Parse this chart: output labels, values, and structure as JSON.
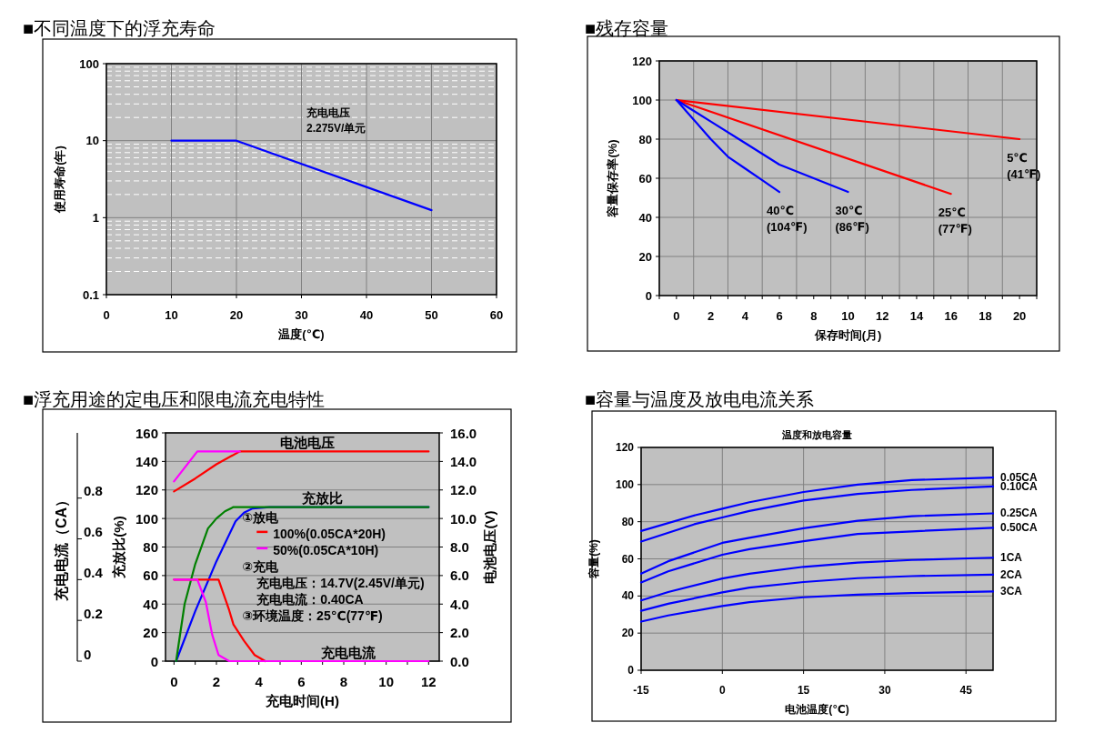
{
  "chart_data": [
    {
      "type": "line",
      "title": "■不同温度下的浮充寿命",
      "xlabel": "温度(℃)",
      "ylabel": "使用寿命(年)",
      "log": "y",
      "xlim": [
        0,
        60
      ],
      "xticks": [
        0,
        10,
        20,
        30,
        40,
        50,
        60
      ],
      "ylim": [
        0.1,
        100
      ],
      "yticks": [
        0.1,
        1,
        10,
        100
      ],
      "grid": true,
      "annotations": [
        "充电电压",
        "2.275V/单元"
      ],
      "series": [
        {
          "color": "#0000ff",
          "x": [
            10,
            20,
            50
          ],
          "values": [
            10,
            10,
            1.25
          ]
        }
      ]
    },
    {
      "type": "line",
      "title": "■残存容量",
      "xlabel": "保存时间(月)",
      "ylabel": "容量保存率(%)",
      "xlim": [
        -1,
        21
      ],
      "xticks": [
        {
          "value": -1,
          "label": null
        },
        0,
        {
          "value": 1,
          "label": null
        },
        2,
        {
          "value": 3,
          "label": null
        },
        4,
        {
          "value": 5,
          "label": null
        },
        6,
        {
          "value": 7,
          "label": null
        },
        8,
        {
          "value": 9,
          "label": null
        },
        10,
        {
          "value": 11,
          "label": null
        },
        12,
        {
          "value": 13,
          "label": null
        },
        14,
        {
          "value": 15,
          "label": null
        },
        16,
        {
          "value": 17,
          "label": null
        },
        18,
        {
          "value": 19,
          "label": null
        },
        20,
        {
          "value": 21,
          "label": null
        }
      ],
      "ylim": [
        0,
        120
      ],
      "yticks": [
        0,
        20,
        40,
        60,
        80,
        100,
        120
      ],
      "grid": true,
      "series": [
        {
          "name": "5℃ (41℉)",
          "color": "#ff0000",
          "x": [
            0,
            20
          ],
          "values": [
            100,
            80
          ]
        },
        {
          "name": "25℃ (77℉)",
          "color": "#ff0000",
          "x": [
            0,
            16
          ],
          "values": [
            100,
            52
          ]
        },
        {
          "name": "30℃ (86℉)",
          "color": "#0000ff",
          "x": [
            0,
            2,
            4,
            6,
            8,
            10
          ],
          "values": [
            100,
            89,
            78,
            67,
            60,
            53
          ]
        },
        {
          "name": "40℃ (104℉)",
          "color": "#0000ff",
          "x": [
            0,
            1,
            2,
            3,
            4,
            5,
            6
          ],
          "values": [
            100,
            90,
            80,
            71,
            65,
            59,
            53
          ]
        }
      ]
    },
    {
      "type": "line",
      "title": "■浮充用途的定电压和限电流充电特性",
      "xlabel": "充电时间(H)",
      "ylabel": "充放比(%)",
      "y2label": "电池电压(V)",
      "y3label": "充电电流（CA）",
      "xlim": [
        -0.4,
        12.5
      ],
      "xticks": [
        0,
        {
          "value": 1,
          "label": null
        },
        2,
        {
          "value": 3,
          "label": null
        },
        4,
        {
          "value": 5,
          "label": null
        },
        6,
        {
          "value": 7,
          "label": null
        },
        8,
        {
          "value": 9,
          "label": null
        },
        10,
        {
          "value": 11,
          "label": null
        },
        12
      ],
      "ylim": [
        0,
        160
      ],
      "yticks": [
        0,
        20,
        40,
        60,
        80,
        100,
        120,
        140,
        160
      ],
      "y2lim": [
        0,
        16
      ],
      "y2ticks": [
        {
          "value": 0,
          "label": "0.0"
        },
        {
          "value": 2,
          "label": "2.0"
        },
        {
          "value": 4,
          "label": "4.0"
        },
        {
          "value": 6,
          "label": "6.0"
        },
        {
          "value": 8,
          "label": "8.0"
        },
        {
          "value": 10,
          "label": "10.0"
        },
        {
          "value": 12,
          "label": "12.0"
        },
        {
          "value": 14,
          "label": "14.0"
        },
        {
          "value": 16,
          "label": "16.0"
        }
      ],
      "y3lim": [
        0,
        1.12
      ],
      "y3ticks": [
        0,
        0.2,
        0.4,
        0.6,
        0.8
      ],
      "grid": "y",
      "legend": "center",
      "legend_title": "①放电",
      "annotations": [
        "②充电",
        "充电电压：14.7V(2.45V/单元)",
        "充电电流：0.40CA",
        "③环境温度：25℃(77℉)",
        {
          "text": "电池电压",
          "x": 6.3,
          "y": 147
        },
        {
          "text": "充放比",
          "x": 7,
          "y": 108
        },
        {
          "text": "充电电流",
          "x": 8.2,
          "y": 0
        }
      ],
      "series": [
        {
          "name": "100%(0.05CA*20H)",
          "color": "#ff0000",
          "axis": "y2",
          "x": [
            0,
            1,
            2,
            3.1,
            12
          ],
          "values": [
            11.9,
            12.8,
            13.8,
            14.7,
            14.7
          ]
        },
        {
          "name": "50%(0.05CA*10H)",
          "color": "#ff00ff",
          "axis": "y2",
          "x": [
            0,
            1.1,
            3.1
          ],
          "values": [
            12.6,
            14.7,
            14.7
          ]
        },
        {
          "color": "#0000ff",
          "x": [
            0.1,
            1,
            2,
            2.9,
            3.3,
            3.7,
            4.5,
            12
          ],
          "values": [
            0,
            35,
            70,
            98,
            104,
            107,
            108,
            108
          ]
        },
        {
          "color": "#008000",
          "x": [
            0.1,
            0.5,
            1,
            1.6,
            2,
            2.4,
            2.8,
            12
          ],
          "values": [
            0,
            40,
            68,
            93,
            100,
            105,
            108,
            108
          ]
        },
        {
          "color": "#ff0000",
          "axis": "y3",
          "x": [
            0,
            2.1,
            2.6,
            2.8,
            3.3,
            3.8,
            4.3
          ],
          "values": [
            0.4,
            0.4,
            0.25,
            0.18,
            0.1,
            0.03,
            0
          ]
        },
        {
          "color": "#ff00ff",
          "axis": "y3",
          "x": [
            0,
            1.1,
            1.5,
            1.8,
            2.1,
            2.6,
            12
          ],
          "values": [
            0.4,
            0.4,
            0.29,
            0.13,
            0.03,
            0,
            0
          ]
        }
      ]
    },
    {
      "type": "line",
      "title": "■容量与温度及放电电流关系",
      "subtitle": "温度和放电容量",
      "xlabel": "电池温度(℃)",
      "ylabel": "容量(%)",
      "xlim": [
        -15,
        50
      ],
      "xticks": [
        -15,
        0,
        15,
        30,
        45
      ],
      "ylim": [
        0,
        120
      ],
      "yticks": [
        0,
        20,
        40,
        60,
        80,
        100,
        120
      ],
      "grid": true,
      "series": [
        {
          "name": "0.05CA",
          "color": "#0000ff",
          "x": [
            -15,
            -5,
            0,
            5,
            15,
            25,
            35,
            50
          ],
          "values": [
            75,
            83.5,
            87,
            90.5,
            96,
            100,
            102.4,
            103.8
          ]
        },
        {
          "name": "0.10CA",
          "color": "#0000ff",
          "x": [
            -15,
            -5,
            0,
            5,
            15,
            25,
            35,
            50
          ],
          "values": [
            69.3,
            78.8,
            82.3,
            85.8,
            91.4,
            95,
            97.1,
            99
          ]
        },
        {
          "name": "0.25CA",
          "color": "#0000ff",
          "x": [
            -15,
            -10,
            0,
            5,
            15,
            25,
            35,
            50
          ],
          "values": [
            52,
            58.7,
            68.6,
            71.3,
            76.5,
            80.5,
            83,
            84.5
          ]
        },
        {
          "name": "0.50CA",
          "color": "#0000ff",
          "x": [
            -15,
            -10,
            0,
            5,
            15,
            25,
            35,
            50
          ],
          "values": [
            47.3,
            53.3,
            62.2,
            65.2,
            69.5,
            73.4,
            74.8,
            76.7
          ]
        },
        {
          "name": "1CA",
          "color": "#0000ff",
          "x": [
            -15,
            -10,
            0,
            5,
            15,
            25,
            35,
            50
          ],
          "values": [
            37.6,
            42.1,
            49.4,
            52,
            55.7,
            58,
            59.4,
            60.6
          ]
        },
        {
          "name": "2CA",
          "color": "#0000ff",
          "x": [
            -15,
            -10,
            0,
            5,
            15,
            25,
            35,
            50
          ],
          "values": [
            32,
            35.8,
            41.9,
            44.5,
            47.5,
            49.6,
            50.7,
            51.5
          ]
        },
        {
          "name": "3CA",
          "color": "#0000ff",
          "x": [
            -15,
            -10,
            0,
            5,
            15,
            25,
            35,
            50
          ],
          "values": [
            26.2,
            29.5,
            34.6,
            36.7,
            39.3,
            40.7,
            41.6,
            42.4
          ]
        }
      ]
    }
  ]
}
